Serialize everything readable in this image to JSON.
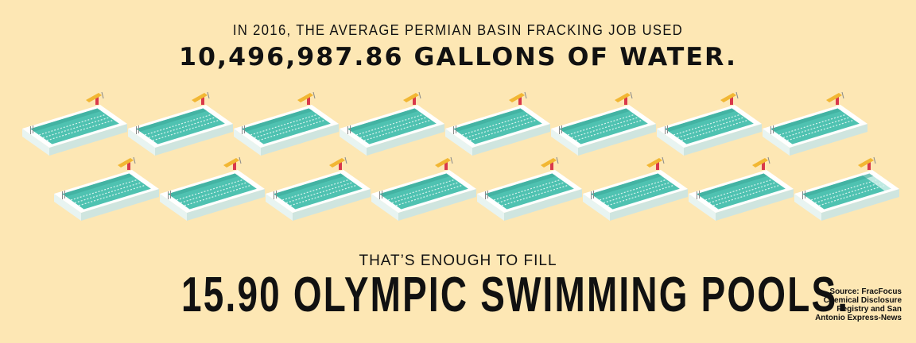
{
  "intro_line": "IN 2016, THE AVERAGE PERMIAN BASIN FRACKING JOB USED",
  "headline": "10,496,987.86 GALLONS OF WATER.",
  "lead_line": "THAT’S ENOUGH TO FILL",
  "conclusion": "15.90 OLYMPIC SWIMMING POOLS.",
  "source_lines": [
    "Source: FracFocus",
    "Chemical Disclosure",
    "Registry and San",
    "Antonio Express-News"
  ],
  "pools": {
    "filled_value": 15.9,
    "total_icons": 16,
    "icon_name": "swimming-pool-icon"
  },
  "colors": {
    "background": "#fde7b4",
    "water": "#4fc2b1",
    "water_light": "#bfe9e2",
    "lane": "#d9f3ef",
    "deck": "#ffffff",
    "side_shadow": "#cfe5df",
    "dive_board": "#f2b733",
    "dive_post": "#d9384b",
    "text": "#111111"
  }
}
